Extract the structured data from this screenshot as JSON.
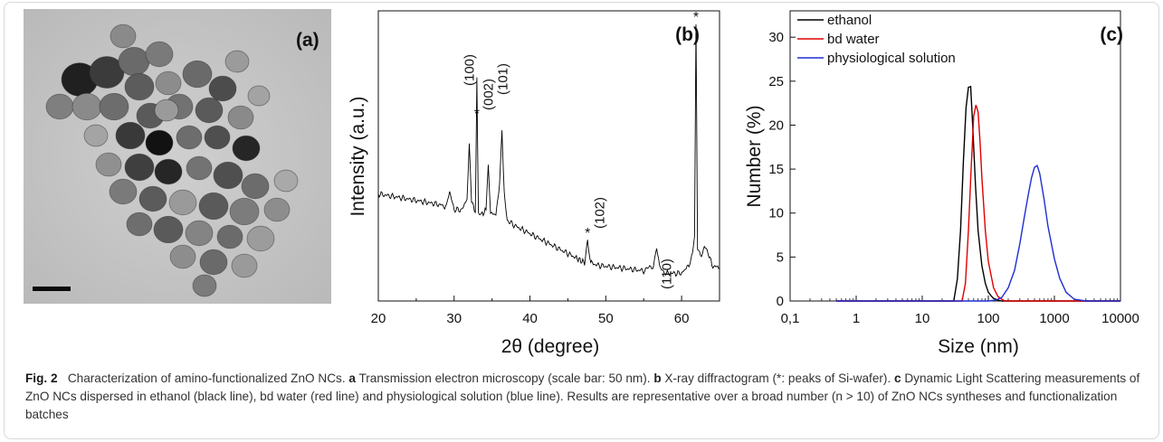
{
  "panels": {
    "a": {
      "label": "(a)"
    },
    "b": {
      "label": "(b)"
    },
    "c": {
      "label": "(c)"
    }
  },
  "chart_data": [
    {
      "type": "line",
      "panel": "b",
      "xlabel": "2θ (degree)",
      "ylabel": "Intensity (a.u.)",
      "xlim": [
        20,
        65
      ],
      "xticks": [
        "20",
        "30",
        "40",
        "50",
        "60"
      ],
      "y_ticks_shown": false,
      "series": [
        {
          "name": "",
          "color": "#000000",
          "x": [
            20,
            22,
            24,
            26,
            28,
            29,
            29.4,
            30,
            31,
            31.7,
            32,
            32.3,
            32.8,
            33.0,
            33.2,
            33.6,
            34.2,
            34.5,
            34.8,
            35.5,
            36.0,
            36.3,
            36.6,
            37.0,
            38,
            40,
            42,
            44,
            46,
            47.2,
            47.6,
            48.0,
            49,
            52,
            55,
            56.3,
            56.7,
            57.1,
            58,
            60,
            61.2,
            61.7,
            61.9,
            62.1,
            62.5,
            63,
            63.5,
            64,
            65
          ],
          "y": [
            0.36,
            0.35,
            0.34,
            0.33,
            0.32,
            0.31,
            0.37,
            0.3,
            0.3,
            0.34,
            0.55,
            0.33,
            0.29,
            0.8,
            0.29,
            0.28,
            0.3,
            0.47,
            0.29,
            0.28,
            0.4,
            0.6,
            0.36,
            0.26,
            0.24,
            0.21,
            0.18,
            0.15,
            0.12,
            0.1,
            0.19,
            0.1,
            0.09,
            0.08,
            0.07,
            0.09,
            0.16,
            0.08,
            0.06,
            0.06,
            0.1,
            0.2,
            1.0,
            0.15,
            0.12,
            0.16,
            0.14,
            0.09,
            0.08
          ]
        }
      ],
      "annotations": [
        {
          "text": "(100)",
          "x": 32.0
        },
        {
          "text": "*",
          "x": 33.0
        },
        {
          "text": "(002)",
          "x": 34.5
        },
        {
          "text": "(101)",
          "x": 36.4
        },
        {
          "text": "*",
          "x": 47.6
        },
        {
          "text": "(102)",
          "x": 49.2
        },
        {
          "text": "(110)",
          "x": 58.0
        },
        {
          "text": "*",
          "x": 61.9
        }
      ]
    },
    {
      "type": "line",
      "panel": "c",
      "xlabel": "Size (nm)",
      "ylabel": "Number (%)",
      "xscale": "log",
      "xlim": [
        0.1,
        10000
      ],
      "ylim": [
        0,
        33
      ],
      "xticks": [
        "0,1",
        "1",
        "10",
        "100",
        "1000",
        "10000"
      ],
      "yticks": [
        "0",
        "5",
        "10",
        "15",
        "20",
        "25",
        "30"
      ],
      "legend": "top-left",
      "series": [
        {
          "name": "ethanol",
          "color": "#000000",
          "x": [
            0.5,
            30,
            34,
            38,
            42,
            46,
            50,
            54,
            58,
            64,
            70,
            80,
            90,
            100,
            110,
            120,
            140,
            160,
            200,
            10000
          ],
          "y": [
            0,
            0,
            2.5,
            8,
            16,
            22,
            24.3,
            24.4,
            20,
            13,
            8,
            4,
            2,
            1,
            0.6,
            0.3,
            0.1,
            0,
            0,
            0
          ]
        },
        {
          "name": "bd water",
          "color": "#e00000",
          "x": [
            0.5,
            40,
            45,
            50,
            55,
            60,
            65,
            70,
            75,
            80,
            90,
            100,
            120,
            140,
            160,
            180,
            200,
            240,
            10000
          ],
          "y": [
            0,
            0,
            2,
            8,
            15,
            21,
            22.3,
            21.5,
            18,
            14,
            8,
            4.5,
            1.5,
            0.5,
            0.2,
            0,
            0,
            0,
            0
          ]
        },
        {
          "name": "physiological solution",
          "color": "#1e2fd0",
          "x": [
            0.5,
            100,
            130,
            160,
            200,
            250,
            300,
            350,
            400,
            450,
            500,
            550,
            600,
            700,
            800,
            1000,
            1200,
            1500,
            2000,
            3000,
            10000
          ],
          "y": [
            0,
            0,
            0.1,
            0.4,
            1.5,
            3.5,
            6.5,
            9.5,
            12,
            14,
            15.2,
            15.4,
            14.5,
            11.5,
            8.5,
            4.8,
            2.6,
            1,
            0.2,
            0,
            0
          ]
        }
      ]
    }
  ],
  "caption": {
    "fig": "Fig. 2",
    "intro": "Characterization of amino-functionalized ZnO NCs.",
    "a_key": "a",
    "a_text": "Transmission electron microscopy (scale bar: 50 nm).",
    "b_key": "b",
    "b_text": "X-ray diffractogram (*: peaks of Si-wafer).",
    "c_key": "c",
    "c_text": "Dynamic Light Scattering measurements of ZnO NCs dispersed in ethanol (black line), bd water (red line) and physiological solution (blue line). Results are representative over a broad number (n > 10) of ZnO NCs syntheses and functionalization batches"
  }
}
